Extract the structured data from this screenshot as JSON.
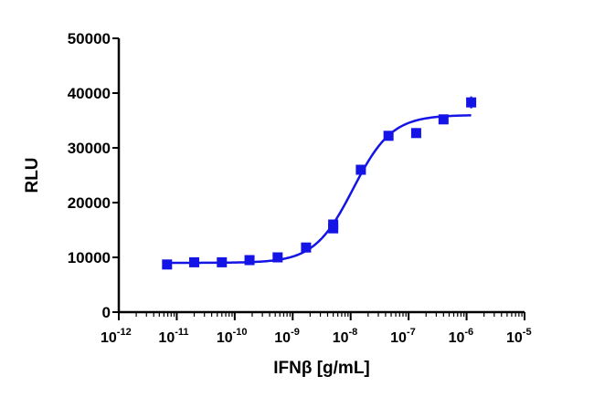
{
  "chart_data": {
    "type": "scatter",
    "title": "",
    "xlabel": "IFNβ [g/mL]",
    "ylabel": "RLU",
    "x_scale": "log",
    "xlim": [
      1e-12,
      1e-05
    ],
    "ylim": [
      0,
      50000
    ],
    "x_ticks": [
      {
        "base": "10",
        "exp": "-12",
        "value": 1e-12
      },
      {
        "base": "10",
        "exp": "-11",
        "value": 1e-11
      },
      {
        "base": "10",
        "exp": "-10",
        "value": 1e-10
      },
      {
        "base": "10",
        "exp": "-9",
        "value": 1e-09
      },
      {
        "base": "10",
        "exp": "-8",
        "value": 1e-08
      },
      {
        "base": "10",
        "exp": "-7",
        "value": 1e-07
      },
      {
        "base": "10",
        "exp": "-6",
        "value": 1e-06
      },
      {
        "base": "10",
        "exp": "-5",
        "value": 1e-05
      }
    ],
    "y_ticks": [
      "0",
      "10000",
      "20000",
      "30000",
      "40000",
      "50000"
    ],
    "y_tick_values": [
      0,
      10000,
      20000,
      30000,
      40000,
      50000
    ],
    "grid": false,
    "series": [
      {
        "color": "#1414e6",
        "marker": "square",
        "points": [
          {
            "x": 6.8e-12,
            "y": 8700
          },
          {
            "x": 2e-11,
            "y": 9100
          },
          {
            "x": 6e-11,
            "y": 9100
          },
          {
            "x": 1.8e-10,
            "y": 9500
          },
          {
            "x": 5.5e-10,
            "y": 10000
          },
          {
            "x": 1.7e-09,
            "y": 11800
          },
          {
            "x": 5e-09,
            "y": 15300
          },
          {
            "x": 5e-09,
            "y": 16000
          },
          {
            "x": 1.5e-08,
            "y": 26000
          },
          {
            "x": 4.5e-08,
            "y": 32200
          },
          {
            "x": 1.35e-07,
            "y": 32700
          },
          {
            "x": 4e-07,
            "y": 35200
          },
          {
            "x": 1.2e-06,
            "y": 38300,
            "err": 1100
          }
        ]
      }
    ],
    "fit": {
      "model": "4PL",
      "bottom": 9000,
      "top": 36000,
      "ec50": 1.1e-08,
      "hill": 1.3,
      "x_range": [
        6.8e-12,
        1.2e-06
      ]
    }
  }
}
